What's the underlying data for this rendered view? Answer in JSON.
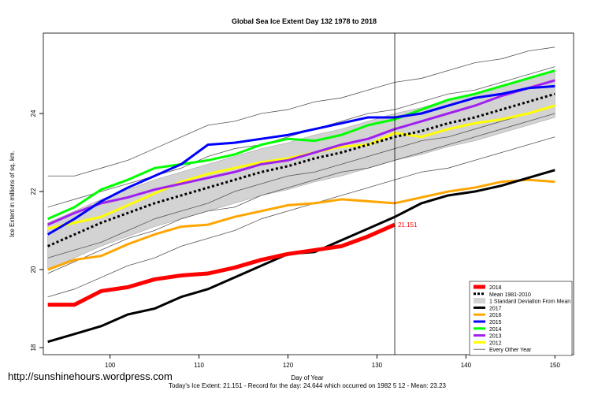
{
  "chart_data": {
    "type": "line",
    "title": "Global Sea Ice Extent Day 132 1978 to 2018",
    "x_label": "Day of Year",
    "y_label": "Ice Extent in millions of sq. km.",
    "footer": "Today's Ice Extent: 21.151  - Record for the day: 24.644 which occurred on 1982 5 12  - Mean: 23.23",
    "watermark": "http://sunshinehours.wordpress.com",
    "annotation": {
      "text": "21.151",
      "x": 132,
      "y": 21.151
    },
    "vline": 132,
    "xlim": [
      92.5,
      152.1
    ],
    "ylim": [
      17.82,
      26.06
    ],
    "xticks": [
      100,
      110,
      120,
      130,
      140,
      150
    ],
    "yticks": [
      18,
      20,
      22,
      24
    ],
    "x": [
      93,
      96,
      99,
      102,
      105,
      108,
      111,
      114,
      117,
      120,
      123,
      126,
      129,
      132,
      135,
      138,
      141,
      144,
      147,
      150
    ],
    "band": {
      "name": "1 Standard Deviation From Mean",
      "color": "#d3d3d3",
      "lower": [
        20.0,
        20.3,
        20.6,
        20.85,
        21.1,
        21.3,
        21.5,
        21.7,
        21.9,
        22.05,
        22.25,
        22.4,
        22.6,
        22.8,
        22.95,
        23.15,
        23.3,
        23.5,
        23.7,
        23.9
      ],
      "upper": [
        21.2,
        21.5,
        21.8,
        22.05,
        22.3,
        22.5,
        22.7,
        22.9,
        23.1,
        23.25,
        23.45,
        23.6,
        23.8,
        24.0,
        24.15,
        24.35,
        24.5,
        24.7,
        24.9,
        25.1
      ]
    },
    "grey_series": [
      {
        "name": "Every Other Year",
        "color": "#555555",
        "values": [
          19.9,
          20.2,
          20.5,
          20.8,
          21.0,
          21.3,
          21.5,
          21.6,
          21.9,
          22.1,
          22.3,
          22.5,
          22.6,
          22.8,
          23.0,
          23.2,
          23.4,
          23.6,
          23.8,
          24.0
        ]
      },
      {
        "color": "#555555",
        "values": [
          22.4,
          22.4,
          22.6,
          22.8,
          23.1,
          23.4,
          23.7,
          23.8,
          24.0,
          24.1,
          24.3,
          24.4,
          24.6,
          24.8,
          24.9,
          25.1,
          25.3,
          25.4,
          25.6,
          25.7
        ]
      },
      {
        "color": "#555555",
        "values": [
          19.3,
          19.5,
          19.8,
          20.1,
          20.3,
          20.6,
          20.8,
          21.0,
          21.3,
          21.5,
          21.7,
          21.9,
          22.1,
          22.3,
          22.5,
          22.6,
          22.8,
          23.0,
          23.2,
          23.4
        ]
      },
      {
        "color": "#555555",
        "values": [
          21.6,
          21.8,
          22.0,
          22.2,
          22.4,
          22.6,
          22.9,
          23.1,
          23.2,
          23.4,
          23.6,
          23.8,
          24.0,
          24.1,
          24.3,
          24.5,
          24.6,
          24.8,
          25.0,
          25.2
        ]
      },
      {
        "color": "#555555",
        "values": [
          20.3,
          20.5,
          20.7,
          21.0,
          21.3,
          21.5,
          21.7,
          22.0,
          22.2,
          22.4,
          22.5,
          22.7,
          22.9,
          23.1,
          23.3,
          23.4,
          23.6,
          23.8,
          24.0,
          24.2
        ]
      }
    ],
    "series": [
      {
        "name": "2018",
        "color": "#ff0000",
        "width": 5,
        "values": [
          19.1,
          19.1,
          19.45,
          19.55,
          19.75,
          19.85,
          19.9,
          20.05,
          20.25,
          20.4,
          20.5,
          20.6,
          20.85,
          21.151,
          null,
          null,
          null,
          null,
          null,
          null
        ]
      },
      {
        "name": "Mean 1981-2010",
        "color": "#000000",
        "width": 3,
        "dash": true,
        "values": [
          20.6,
          20.9,
          21.2,
          21.45,
          21.7,
          21.9,
          22.1,
          22.3,
          22.5,
          22.65,
          22.85,
          23.0,
          23.2,
          23.4,
          23.55,
          23.75,
          23.9,
          24.1,
          24.3,
          24.5
        ]
      },
      {
        "name": "2017",
        "color": "#000000",
        "width": 3,
        "values": [
          18.15,
          18.35,
          18.55,
          18.85,
          19.0,
          19.3,
          19.5,
          19.8,
          20.1,
          20.4,
          20.45,
          20.75,
          21.05,
          21.35,
          21.7,
          21.9,
          22.0,
          22.15,
          22.35,
          22.55
        ]
      },
      {
        "name": "2016",
        "color": "#ffa500",
        "width": 3,
        "values": [
          20.0,
          20.25,
          20.35,
          20.65,
          20.9,
          21.1,
          21.15,
          21.35,
          21.5,
          21.65,
          21.7,
          21.8,
          21.75,
          21.7,
          21.85,
          22.0,
          22.1,
          22.25,
          22.3,
          22.25
        ]
      },
      {
        "name": "2015",
        "color": "#0000ff",
        "width": 3,
        "values": [
          20.9,
          21.3,
          21.75,
          22.1,
          22.4,
          22.7,
          23.2,
          23.25,
          23.35,
          23.45,
          23.6,
          23.75,
          23.9,
          23.9,
          24.0,
          24.2,
          24.4,
          24.5,
          24.65,
          24.7
        ]
      },
      {
        "name": "2014",
        "color": "#00ff00",
        "width": 3,
        "values": [
          21.3,
          21.6,
          22.05,
          22.3,
          22.6,
          22.7,
          22.8,
          22.95,
          23.2,
          23.35,
          23.3,
          23.45,
          23.7,
          23.85,
          24.1,
          24.35,
          24.5,
          24.7,
          24.9,
          25.1
        ]
      },
      {
        "name": "2013",
        "color": "#a020f0",
        "width": 3,
        "values": [
          21.15,
          21.45,
          21.7,
          21.85,
          22.05,
          22.2,
          22.35,
          22.5,
          22.7,
          22.8,
          23.0,
          23.2,
          23.35,
          23.6,
          23.8,
          24.0,
          24.2,
          24.45,
          24.65,
          24.85
        ]
      },
      {
        "name": "2012",
        "color": "#ffff00",
        "width": 3,
        "values": [
          21.05,
          21.2,
          21.35,
          21.65,
          21.95,
          22.25,
          22.45,
          22.6,
          22.75,
          22.85,
          23.0,
          23.15,
          23.2,
          23.5,
          23.4,
          23.6,
          23.75,
          23.85,
          24.0,
          24.2
        ]
      }
    ]
  }
}
